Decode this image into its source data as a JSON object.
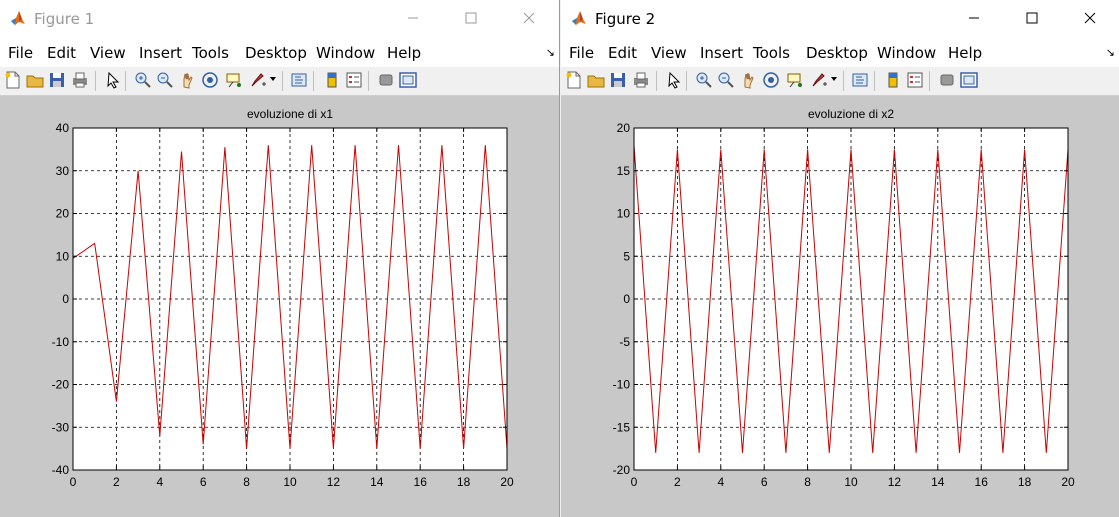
{
  "windows": [
    {
      "title": "Figure 1",
      "active": false,
      "menu": [
        "File",
        "Edit",
        "View",
        "Insert",
        "Tools",
        "Desktop",
        "Window",
        "Help"
      ],
      "chart_data": {
        "type": "line",
        "title": "evoluzione di x1",
        "xlabel": "",
        "ylabel": "",
        "xlim": [
          0,
          20
        ],
        "ylim": [
          -40,
          40
        ],
        "xticks": [
          0,
          2,
          4,
          6,
          8,
          10,
          12,
          14,
          16,
          18,
          20
        ],
        "yticks": [
          40,
          30,
          20,
          10,
          0,
          -10,
          -20,
          -30,
          -40
        ],
        "grid": true,
        "series": [
          {
            "color": "#cc0000",
            "x": [
              0,
              1,
              2,
              3,
              4,
              5,
              6,
              7,
              8,
              9,
              10,
              11,
              12,
              13,
              14,
              15,
              16,
              17,
              18,
              19,
              20
            ],
            "y": [
              9.5,
              13,
              -24,
              30,
              -32,
              34.5,
              -34,
              35.5,
              -35,
              36,
              -35,
              36,
              -35,
              36,
              -35,
              36,
              -35,
              36,
              -35,
              36,
              -35
            ]
          }
        ]
      }
    },
    {
      "title": "Figure 2",
      "active": true,
      "menu": [
        "File",
        "Edit",
        "View",
        "Insert",
        "Tools",
        "Desktop",
        "Window",
        "Help"
      ],
      "chart_data": {
        "type": "line",
        "title": "evoluzione di x2",
        "xlabel": "",
        "ylabel": "",
        "xlim": [
          0,
          20
        ],
        "ylim": [
          -20,
          20
        ],
        "xticks": [
          0,
          2,
          4,
          6,
          8,
          10,
          12,
          14,
          16,
          18,
          20
        ],
        "yticks": [
          20,
          15,
          10,
          5,
          0,
          -5,
          -10,
          -15,
          -20
        ],
        "grid": true,
        "series": [
          {
            "color": "#cc0000",
            "x": [
              0,
              1,
              2,
              3,
              4,
              5,
              6,
              7,
              8,
              9,
              10,
              11,
              12,
              13,
              14,
              15,
              16,
              17,
              18,
              19,
              20
            ],
            "y": [
              18,
              -18,
              17.5,
              -18,
              17.5,
              -18,
              17.5,
              -18,
              17.5,
              -18,
              17.5,
              -18,
              17.5,
              -18,
              17.5,
              -18,
              17.5,
              -18,
              17.5,
              -18,
              17.5
            ]
          }
        ]
      }
    }
  ],
  "icons": {
    "app": "matlab-icon",
    "toolbar": [
      "new-figure-icon",
      "open-file-icon",
      "save-icon",
      "print-icon",
      "pointer-icon",
      "zoom-in-icon",
      "zoom-out-icon",
      "pan-icon",
      "rotate-3d-icon",
      "data-cursor-icon",
      "brush-icon",
      "link-plot-icon",
      "colorbar-icon",
      "legend-icon",
      "hide-plot-tools-icon",
      "show-plot-tools-icon"
    ]
  }
}
